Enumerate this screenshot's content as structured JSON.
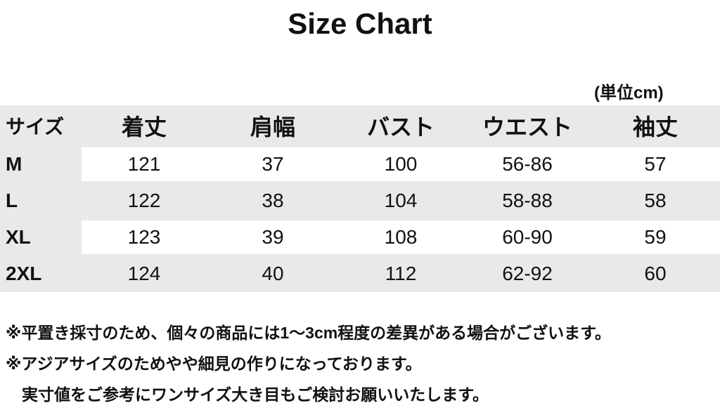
{
  "title": "Size Chart",
  "unit": "(単位cm)",
  "table": {
    "headers": [
      "サイズ",
      "着丈",
      "肩幅",
      "バスト",
      "ウエスト",
      "袖丈"
    ],
    "rows": [
      [
        "M",
        "121",
        "37",
        "100",
        "56-86",
        "57"
      ],
      [
        "L",
        "122",
        "38",
        "104",
        "58-88",
        "58"
      ],
      [
        "XL",
        "123",
        "39",
        "108",
        "60-90",
        "59"
      ],
      [
        "2XL",
        "124",
        "40",
        "112",
        "62-92",
        "60"
      ]
    ]
  },
  "notes": [
    "※平置き採寸のため、個々の商品には1～3cm程度の差異がある場合がございます。",
    "※アジアサイズのためやや細見の作りになっております。",
    "　実寸値をご参考にワンサイズ大き目もご検討お願いいたします。"
  ],
  "colors": {
    "row_grey": "#e9e9e9",
    "row_white": "#ffffff",
    "text": "#111111"
  }
}
